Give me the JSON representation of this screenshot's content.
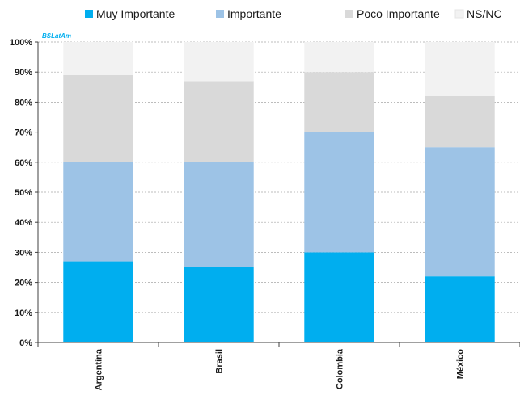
{
  "watermark": "BSLatAm",
  "chart_data": {
    "type": "bar",
    "stacked": true,
    "categories": [
      "Argentina",
      "Brasil",
      "Colombia",
      "México"
    ],
    "series": [
      {
        "name": "Muy Importante",
        "color": "#00aeef",
        "values": [
          27,
          25,
          30,
          22
        ]
      },
      {
        "name": "Importante",
        "color": "#9dc3e6",
        "values": [
          33,
          35,
          40,
          43
        ]
      },
      {
        "name": "Poco Importante",
        "color": "#d9d9d9",
        "values": [
          29,
          27,
          20,
          17
        ]
      },
      {
        "name": "NS/NC",
        "color": "#f2f2f2",
        "values": [
          11,
          13,
          10,
          18
        ]
      }
    ],
    "ylim": [
      0,
      100
    ],
    "yticks": [
      "0%",
      "10%",
      "20%",
      "30%",
      "40%",
      "50%",
      "60%",
      "70%",
      "80%",
      "90%",
      "100%"
    ],
    "grid": true,
    "legend": "top"
  }
}
